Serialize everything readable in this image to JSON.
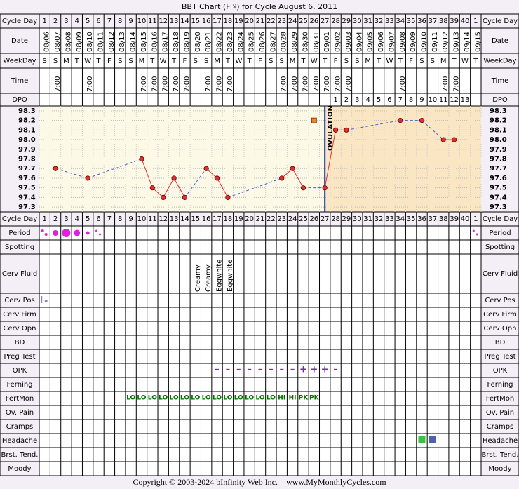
{
  "title": "BBT Chart (F º) for Cycle August 6, 2011",
  "row_labels": [
    "Cycle Day",
    "Date",
    "WeekDay",
    "Time",
    "DPO",
    "Cycle Day",
    "Period",
    "Spotting",
    "Cerv Fluid",
    "Cerv Pos",
    "Cerv Firm",
    "Cerv Opn",
    "BD",
    "Preg Test",
    "OPK",
    "Ferning",
    "FertMon",
    "Ov. Pain",
    "Cramps",
    "Headache",
    "Brst. Tend.",
    "Moody"
  ],
  "cycle_days": [
    1,
    2,
    3,
    4,
    5,
    6,
    7,
    8,
    9,
    10,
    11,
    12,
    13,
    14,
    15,
    16,
    17,
    18,
    19,
    20,
    21,
    22,
    23,
    24,
    25,
    26,
    27,
    28,
    29,
    30,
    31,
    32,
    33,
    34,
    35,
    36,
    37,
    38,
    39,
    40,
    1
  ],
  "dates": [
    "08/06",
    "08/07",
    "08/08",
    "08/09",
    "08/10",
    "08/11",
    "08/12",
    "08/13",
    "08/14",
    "08/15",
    "08/16",
    "08/17",
    "08/18",
    "08/19",
    "08/20",
    "08/21",
    "08/22",
    "08/23",
    "08/24",
    "08/25",
    "08/26",
    "08/27",
    "08/28",
    "08/29",
    "08/30",
    "08/31",
    "09/01",
    "09/02",
    "09/03",
    "09/04",
    "09/05",
    "09/06",
    "09/07",
    "09/08",
    "09/09",
    "09/10",
    "09/11",
    "09/12",
    "09/13",
    "09/14",
    "09/15"
  ],
  "weekdays": [
    "S",
    "S",
    "M",
    "T",
    "W",
    "T",
    "F",
    "S",
    "S",
    "M",
    "T",
    "W",
    "T",
    "F",
    "S",
    "S",
    "M",
    "T",
    "W",
    "T",
    "F",
    "S",
    "S",
    "M",
    "T",
    "W",
    "T",
    "F",
    "S",
    "S",
    "M",
    "T",
    "W",
    "T",
    "F",
    "S",
    "S",
    "M",
    "T",
    "W",
    "T"
  ],
  "times": [
    null,
    "7:00",
    null,
    null,
    "7:00",
    null,
    null,
    null,
    null,
    "7:00",
    "7:00",
    "7:00",
    "7:00",
    "7:00",
    null,
    "7:00",
    "7:00",
    "7:00",
    null,
    null,
    null,
    null,
    "7:00",
    "7:00",
    "7:00",
    "7:00",
    "7:00",
    "7:00",
    "7:00",
    null,
    null,
    null,
    null,
    "7:00",
    null,
    null,
    null,
    "7:00",
    "7:00",
    null,
    null
  ],
  "dpo": [
    null,
    null,
    null,
    null,
    null,
    null,
    null,
    null,
    null,
    null,
    null,
    null,
    null,
    null,
    null,
    null,
    null,
    null,
    null,
    null,
    null,
    null,
    null,
    null,
    null,
    null,
    null,
    1,
    2,
    3,
    4,
    5,
    6,
    7,
    8,
    9,
    10,
    11,
    12,
    13,
    null
  ],
  "chart_data": {
    "type": "line",
    "ylim": [
      97.25,
      98.35
    ],
    "yticks": [
      98.3,
      98.2,
      98.1,
      {
        "value": 98,
        "label": "98.0"
      },
      97.9,
      97.8,
      97.7,
      97.6,
      97.5,
      97.4,
      97.3
    ],
    "grid": true,
    "color": "#e03030",
    "gap_color": "#4060d0",
    "ovulation_label": "OVULATION",
    "ovulation_color": "#1030b0",
    "series": [
      {
        "color": "#e03030",
        "values": [
          null,
          97.7,
          null,
          null,
          97.6,
          null,
          null,
          null,
          null,
          97.8,
          97.5,
          97.4,
          97.6,
          97.4,
          null,
          97.7,
          97.6,
          97.4,
          null,
          null,
          null,
          null,
          97.6,
          97.7,
          97.5,
          null,
          97.5,
          98.1,
          98.1,
          null,
          null,
          null,
          null,
          98.2,
          null,
          98.2,
          null,
          98.0,
          98.0,
          null,
          null
        ]
      },
      {
        "color": "#f08030",
        "values": [
          null,
          null,
          null,
          null,
          null,
          null,
          null,
          null,
          null,
          null,
          null,
          null,
          null,
          null,
          null,
          null,
          null,
          null,
          null,
          null,
          null,
          null,
          null,
          null,
          null,
          98.2,
          null,
          null,
          null,
          null,
          null,
          null,
          null,
          null,
          null,
          null,
          null,
          null,
          null,
          null,
          null
        ]
      }
    ]
  },
  "cerv_fluid": [
    null,
    null,
    null,
    null,
    null,
    null,
    null,
    null,
    null,
    null,
    null,
    null,
    null,
    null,
    "Creamy",
    "Creamy",
    "Eggwhite",
    "Eggwhite",
    null,
    null,
    null,
    null,
    null,
    null,
    null,
    null,
    null,
    null,
    null,
    null,
    null,
    null,
    null,
    null,
    null,
    null,
    null,
    null,
    null,
    null,
    null
  ],
  "opk": [
    null,
    null,
    null,
    null,
    null,
    null,
    null,
    null,
    null,
    null,
    null,
    null,
    null,
    null,
    null,
    null,
    "–",
    "–",
    "–",
    "–",
    "–",
    "–",
    "–",
    "–",
    "+",
    "+",
    "+",
    "–",
    null,
    null,
    null,
    null,
    null,
    null,
    null,
    null,
    null,
    null,
    null,
    null,
    null
  ],
  "fertmon": [
    null,
    null,
    null,
    null,
    null,
    null,
    null,
    null,
    "LO",
    "LO",
    "LO",
    "LO",
    "LO",
    "LO",
    "LO",
    "LO",
    "LO",
    "LO",
    "LO",
    "LO",
    "LO",
    "LO",
    "HI",
    "HI",
    "PK",
    "PK",
    null,
    null,
    null,
    null,
    null,
    null,
    null,
    null,
    null,
    null,
    null,
    null,
    null,
    null,
    null
  ],
  "copyright": "Copyright © 2003-2024 bInfinity Web Inc.    www.MyMonthlyCycles.com"
}
